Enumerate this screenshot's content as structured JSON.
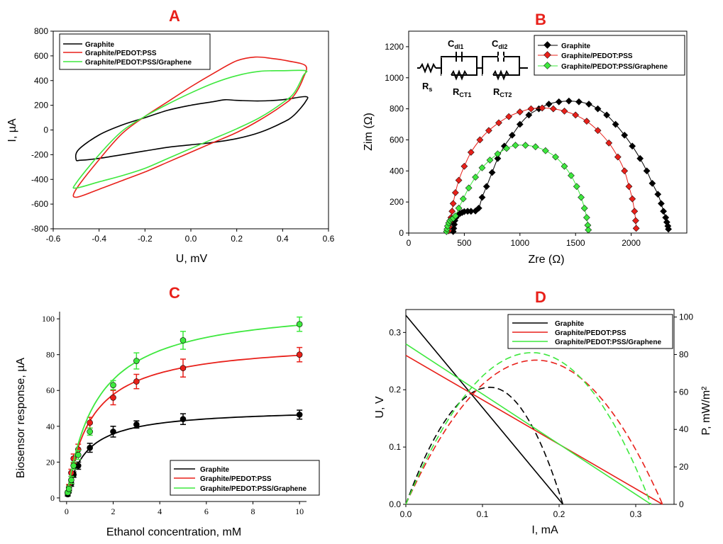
{
  "colors": {
    "graphite": "#000000",
    "pedot": "#e8201a",
    "graphene": "#3ee83e",
    "letter": "#e8201a"
  },
  "chart_data": [
    {
      "id": "A",
      "panel_letter": "A",
      "type": "line",
      "title": "",
      "xlabel": "U, mV",
      "ylabel": "I, µA",
      "xlim": [
        -0.6,
        0.6
      ],
      "ylim": [
        -800,
        800
      ],
      "xticks": [
        -0.6,
        -0.4,
        -0.2,
        0.0,
        0.2,
        0.4,
        0.6
      ],
      "xtick_labels": [
        "-0.6",
        "-0.4",
        "-0.2",
        "0.0",
        "0.2",
        "0.4",
        "0.6"
      ],
      "yticks": [
        -800,
        -600,
        -400,
        -200,
        0,
        200,
        400,
        600,
        800
      ],
      "ytick_labels": [
        "-800",
        "-600",
        "-400",
        "-200",
        "0",
        "200",
        "400",
        "600",
        "800"
      ],
      "legend": [
        "Graphite",
        "Graphite/PEDOT:PSS",
        "Graphite/PEDOT:PSS/Graphene"
      ],
      "legend_position": "top-left",
      "series": [
        {
          "name": "Graphite",
          "color": "#000000",
          "closed": true,
          "x": [
            -0.49,
            -0.4,
            -0.3,
            -0.2,
            -0.1,
            0.0,
            0.1,
            0.15,
            0.2,
            0.3,
            0.4,
            0.5,
            0.5,
            0.45,
            0.4,
            0.3,
            0.2,
            0.1,
            0.0,
            -0.1,
            -0.2,
            -0.3,
            -0.4,
            -0.48,
            -0.5
          ],
          "y": [
            -160,
            -40,
            40,
            100,
            160,
            200,
            230,
            245,
            240,
            235,
            245,
            270,
            230,
            120,
            60,
            -20,
            -70,
            -100,
            -120,
            -140,
            -170,
            -200,
            -230,
            -245,
            -240
          ]
        },
        {
          "name": "Graphite/PEDOT:PSS",
          "color": "#e8201a",
          "closed": true,
          "x": [
            -0.5,
            -0.4,
            -0.3,
            -0.2,
            -0.1,
            0.0,
            0.1,
            0.2,
            0.28,
            0.35,
            0.42,
            0.5,
            0.49,
            0.45,
            0.4,
            0.3,
            0.2,
            0.1,
            0.0,
            -0.1,
            -0.2,
            -0.3,
            -0.4,
            -0.5
          ],
          "y": [
            -480,
            -240,
            -30,
            110,
            230,
            350,
            460,
            560,
            590,
            580,
            560,
            520,
            420,
            280,
            200,
            80,
            -20,
            -100,
            -180,
            -260,
            -340,
            -410,
            -480,
            -545
          ]
        },
        {
          "name": "Graphite/PEDOT:PSS/Graphene",
          "color": "#3ee83e",
          "closed": true,
          "x": [
            -0.5,
            -0.4,
            -0.3,
            -0.2,
            -0.1,
            0.0,
            0.1,
            0.2,
            0.3,
            0.4,
            0.5,
            0.49,
            0.45,
            0.4,
            0.3,
            0.2,
            0.1,
            0.0,
            -0.1,
            -0.2,
            -0.3,
            -0.4,
            -0.5
          ],
          "y": [
            -430,
            -200,
            -10,
            110,
            210,
            300,
            380,
            440,
            475,
            480,
            480,
            440,
            300,
            220,
            100,
            10,
            -70,
            -150,
            -230,
            -310,
            -370,
            -420,
            -470
          ]
        }
      ]
    },
    {
      "id": "B",
      "panel_letter": "B",
      "type": "scatter",
      "title": "",
      "xlabel": "Zre (Ω)",
      "ylabel": "Zim (Ω)",
      "xlim": [
        0,
        2500
      ],
      "ylim": [
        0,
        1300
      ],
      "xticks": [
        0,
        500,
        1000,
        1500,
        2000
      ],
      "xtick_labels": [
        "0",
        "500",
        "1000",
        "1500",
        "2000"
      ],
      "yticks": [
        0,
        200,
        400,
        600,
        800,
        1000,
        1200
      ],
      "ytick_labels": [
        "0",
        "200",
        "400",
        "600",
        "800",
        "1000",
        "1200"
      ],
      "legend": [
        "Graphite",
        "Graphite/PEDOT:PSS",
        "Graphite/PEDOT:PSS/Graphene"
      ],
      "legend_position": "top-right",
      "circuit_labels": {
        "rs": "R",
        "rs_sub": "s",
        "cdl1": "C",
        "cdl1_sub": "dl1",
        "rct1": "R",
        "rct1_sub": "CT1",
        "cdl2": "C",
        "cdl2_sub": "dl2",
        "rct2": "R",
        "rct2_sub": "CT2"
      },
      "series": [
        {
          "name": "Graphite",
          "color": "#000000",
          "x": [
            400,
            405,
            410,
            415,
            425,
            440,
            460,
            480,
            500,
            530,
            560,
            600,
            630,
            660,
            700,
            750,
            800,
            860,
            930,
            1000,
            1080,
            1170,
            1260,
            1350,
            1440,
            1530,
            1620,
            1700,
            1780,
            1860,
            1940,
            2010,
            2080,
            2140,
            2190,
            2240,
            2270,
            2290,
            2310,
            2320,
            2330,
            2335
          ],
          "y": [
            10,
            30,
            55,
            80,
            100,
            115,
            125,
            132,
            138,
            140,
            140,
            142,
            160,
            230,
            300,
            390,
            480,
            560,
            630,
            700,
            760,
            800,
            830,
            845,
            850,
            845,
            830,
            800,
            760,
            700,
            630,
            560,
            480,
            400,
            320,
            250,
            190,
            140,
            100,
            70,
            45,
            25
          ]
        },
        {
          "name": "Graphite/PEDOT:PSS",
          "color": "#e8201a",
          "x": [
            360,
            365,
            370,
            380,
            390,
            400,
            420,
            450,
            500,
            560,
            640,
            720,
            810,
            900,
            1000,
            1100,
            1200,
            1300,
            1400,
            1500,
            1600,
            1700,
            1800,
            1880,
            1940,
            1980,
            2010,
            2030,
            2040,
            2045
          ],
          "y": [
            15,
            40,
            70,
            100,
            140,
            190,
            260,
            340,
            430,
            520,
            600,
            660,
            710,
            750,
            780,
            800,
            805,
            800,
            785,
            760,
            720,
            660,
            580,
            490,
            400,
            300,
            220,
            140,
            80,
            30
          ]
        },
        {
          "name": "Graphite/PEDOT:PSS/Graphene",
          "color": "#3ee83e",
          "x": [
            340,
            345,
            350,
            360,
            370,
            385,
            400,
            420,
            450,
            490,
            540,
            600,
            660,
            730,
            800,
            880,
            960,
            1050,
            1140,
            1230,
            1320,
            1400,
            1460,
            1510,
            1550,
            1580,
            1600,
            1610,
            1615
          ],
          "y": [
            10,
            25,
            45,
            65,
            80,
            90,
            95,
            110,
            160,
            220,
            290,
            360,
            420,
            470,
            510,
            545,
            565,
            565,
            555,
            530,
            490,
            430,
            370,
            300,
            230,
            160,
            100,
            50,
            20
          ]
        }
      ]
    },
    {
      "id": "C",
      "panel_letter": "C",
      "type": "scatter",
      "title": "",
      "xlabel": "Ethanol concentration, mM",
      "ylabel": "Biosensor response, µA",
      "xlim": [
        -0.3,
        10.3
      ],
      "ylim": [
        -2,
        104
      ],
      "xticks": [
        0,
        2,
        4,
        6,
        8,
        10
      ],
      "xtick_labels": [
        "0",
        "2",
        "4",
        "6",
        "8",
        "10"
      ],
      "yticks": [
        0,
        20,
        40,
        60,
        80,
        100
      ],
      "ytick_labels": [
        "0",
        "20",
        "40",
        "60",
        "80",
        "100"
      ],
      "legend": [
        "Graphite",
        "Graphite/PEDOT:PSS",
        "Graphite/PEDOT:PSS/Graphene"
      ],
      "legend_position": "bottom-right",
      "x": [
        0.05,
        0.1,
        0.2,
        0.3,
        0.5,
        1,
        2,
        3,
        5,
        10
      ],
      "series": [
        {
          "name": "Graphite",
          "color": "#000000",
          "vmax": 50,
          "km": 0.8,
          "values": [
            2,
            4,
            8,
            13,
            18,
            28,
            37,
            41,
            44,
            46.5
          ],
          "errors": [
            1,
            1.2,
            1.5,
            1.5,
            2,
            2.5,
            3,
            2,
            3,
            2.5
          ]
        },
        {
          "name": "Graphite/PEDOT:PSS",
          "color": "#e8201a",
          "vmax": 88,
          "km": 1.05,
          "values": [
            3,
            6,
            14,
            22,
            27,
            42,
            56,
            65,
            72.5,
            80
          ],
          "errors": [
            1,
            1.5,
            2,
            2.5,
            3,
            3,
            4,
            4,
            5,
            4
          ]
        },
        {
          "name": "Graphite/PEDOT:PSS/Graphene",
          "color": "#3ee83e",
          "vmax": 109,
          "km": 1.3,
          "values": [
            3,
            5,
            10,
            18,
            24,
            37,
            63,
            76.5,
            88,
            97
          ],
          "errors": [
            1,
            1.5,
            2,
            2,
            2.5,
            2,
            2.5,
            4.5,
            5,
            4
          ]
        }
      ]
    },
    {
      "id": "D",
      "panel_letter": "D",
      "type": "line",
      "title": "",
      "xlabel": "I, mA",
      "ylabel": "U, V",
      "y2label": "P, mW/m²",
      "xlim": [
        0,
        0.35
      ],
      "ylim": [
        0,
        0.34
      ],
      "y2lim": [
        0,
        104
      ],
      "xticks": [
        0.0,
        0.1,
        0.2,
        0.3
      ],
      "xtick_labels": [
        "0.0",
        "0.1",
        "0.2",
        "0.3"
      ],
      "yticks": [
        0.0,
        0.1,
        0.2,
        0.3
      ],
      "ytick_labels": [
        "0.0",
        "0.1",
        "0.2",
        "0.3"
      ],
      "y2ticks": [
        0,
        20,
        40,
        60,
        80,
        100
      ],
      "y2tick_labels": [
        "0",
        "20",
        "40",
        "60",
        "80",
        "100"
      ],
      "legend": [
        "Graphite",
        "Graphite/PEDOT:PSS",
        "Graphite/PEDOT:PSS/Graphene"
      ],
      "legend_position": "top-right",
      "series": [
        {
          "name": "Graphite",
          "color": "#000000",
          "voc": 0.33,
          "isc": 0.205,
          "pmax": 62.5,
          "i_at_pmax": 0.11
        },
        {
          "name": "Graphite/PEDOT:PSS",
          "color": "#e8201a",
          "voc": 0.26,
          "isc": 0.335,
          "pmax": 77,
          "i_at_pmax": 0.17
        },
        {
          "name": "Graphite/PEDOT:PSS/Graphene",
          "color": "#3ee83e",
          "voc": 0.28,
          "isc": 0.32,
          "pmax": 81,
          "i_at_pmax": 0.165
        }
      ]
    }
  ]
}
